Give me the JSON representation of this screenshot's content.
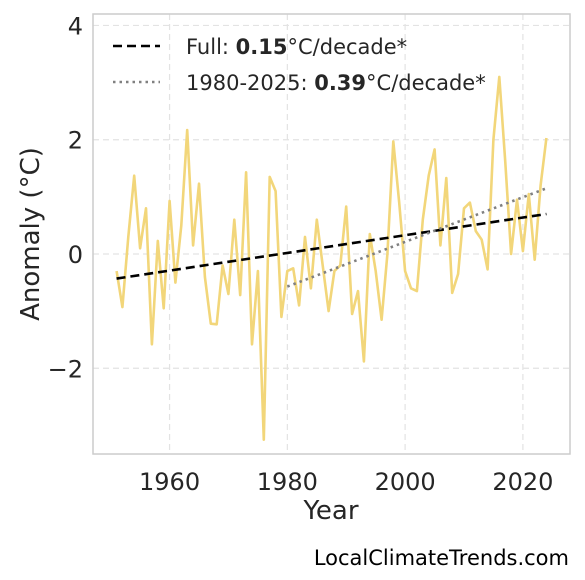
{
  "chart_data": {
    "type": "line",
    "xlabel": "Year",
    "ylabel": "Anomaly (°C)",
    "xlim": [
      1947,
      2028
    ],
    "ylim": [
      -3.5,
      4.2
    ],
    "xticks": [
      1960,
      1980,
      2000,
      2020
    ],
    "yticks": [
      -2,
      0,
      2,
      4
    ],
    "ytick_labels": [
      "−2",
      "0",
      "2",
      "4"
    ],
    "grid": true,
    "legend_position": "top-left",
    "x": [
      1951,
      1952,
      1953,
      1954,
      1955,
      1956,
      1957,
      1958,
      1959,
      1960,
      1961,
      1962,
      1963,
      1964,
      1965,
      1966,
      1967,
      1968,
      1969,
      1970,
      1971,
      1972,
      1973,
      1974,
      1975,
      1976,
      1977,
      1978,
      1979,
      1980,
      1981,
      1982,
      1983,
      1984,
      1985,
      1986,
      1987,
      1988,
      1989,
      1990,
      1991,
      1992,
      1993,
      1994,
      1995,
      1996,
      1997,
      1998,
      1999,
      2000,
      2001,
      2002,
      2003,
      2004,
      2005,
      2006,
      2007,
      2008,
      2009,
      2010,
      2011,
      2012,
      2013,
      2014,
      2015,
      2016,
      2017,
      2018,
      2019,
      2020,
      2021,
      2022,
      2023,
      2024
    ],
    "series": [
      {
        "values": [
          -0.3,
          -0.93,
          0.3,
          1.37,
          0.1,
          0.8,
          -1.58,
          0.23,
          -0.95,
          0.93,
          -0.5,
          0.5,
          2.17,
          0.15,
          1.23,
          -0.4,
          -1.22,
          -1.23,
          -0.2,
          -0.7,
          0.6,
          -0.72,
          1.43,
          -1.58,
          -0.3,
          -3.25,
          1.35,
          1.1,
          -1.1,
          -0.3,
          -0.25,
          -0.9,
          0.3,
          -0.6,
          0.6,
          -0.2,
          -1.0,
          -0.3,
          -0.2,
          0.83,
          -1.05,
          -0.65,
          -1.88,
          0.35,
          -0.3,
          -1.15,
          0.0,
          1.97,
          0.9,
          -0.3,
          -0.6,
          -0.65,
          0.6,
          1.37,
          1.83,
          0.15,
          1.33,
          -0.68,
          -0.35,
          0.8,
          0.9,
          0.4,
          0.25,
          -0.27,
          2.0,
          3.1,
          1.63,
          0.0,
          0.95,
          0.05,
          1.05,
          -0.1,
          1.2,
          2.03
        ],
        "color": "#f2d67a"
      },
      {
        "name": "Full: 0.15°C/decade*",
        "name_parts": [
          "Full: ",
          "0.15",
          "°C/decade*"
        ],
        "x": [
          1951,
          2024
        ],
        "values": [
          -0.43,
          0.7
        ],
        "style": "dashed",
        "color": "#000000"
      },
      {
        "name": "1980-2025: 0.39°C/decade*",
        "name_parts": [
          "1980-2025: ",
          "0.39",
          "°C/decade*"
        ],
        "x": [
          1980,
          2024
        ],
        "values": [
          -0.57,
          1.15
        ],
        "style": "dotted",
        "color": "#808080"
      }
    ]
  },
  "credit": "LocalClimateTrends.com"
}
